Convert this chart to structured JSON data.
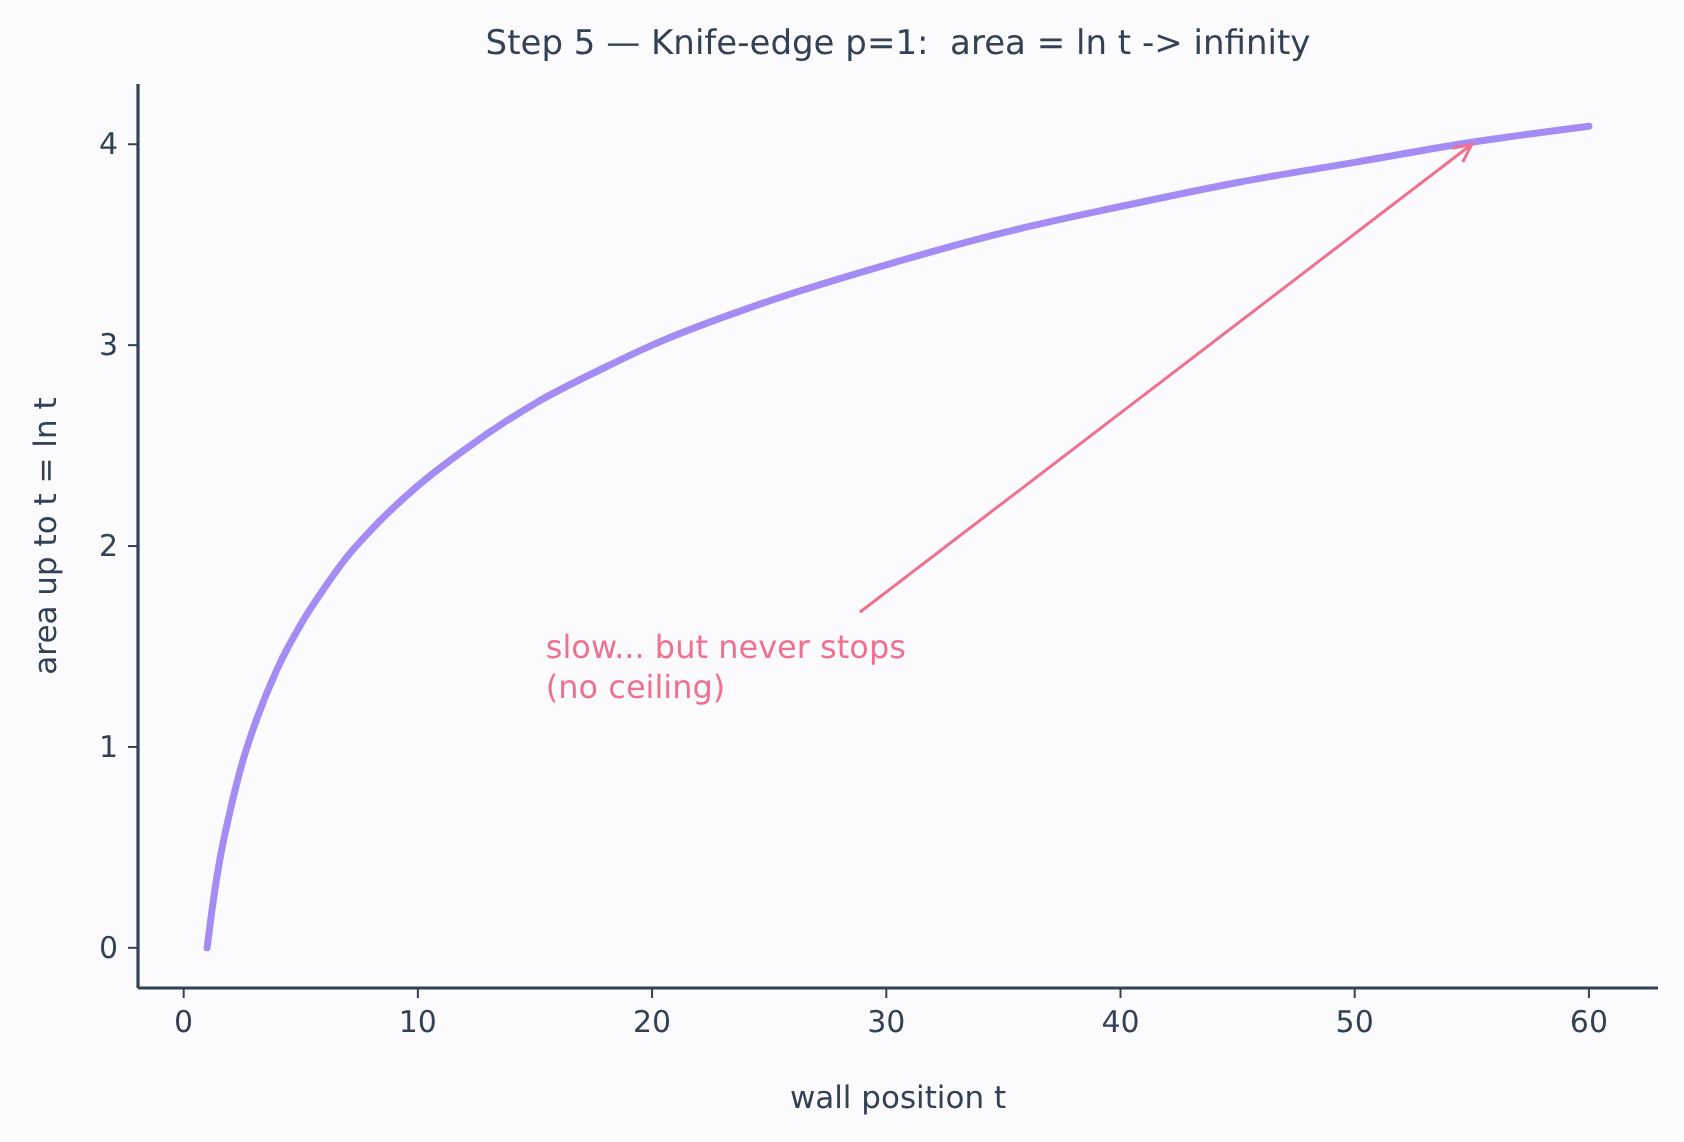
{
  "chart_data": {
    "type": "line",
    "title": "Step 5 — Knife-edge p=1:  area = ln t -> infinity",
    "xlabel": "wall position t",
    "ylabel": "area up to t  = ln t",
    "x": [
      1,
      1.2,
      1.5,
      2,
      2.5,
      3,
      4,
      5,
      6,
      7,
      8,
      10,
      12,
      15,
      18,
      20,
      25,
      30,
      35,
      40,
      45,
      50,
      55,
      60
    ],
    "series": [
      {
        "color": "#a48cf4",
        "values": [
          0,
          0.18,
          0.41,
          0.69,
          0.92,
          1.1,
          1.39,
          1.61,
          1.79,
          1.95,
          2.08,
          2.3,
          2.48,
          2.71,
          2.89,
          3.0,
          3.22,
          3.4,
          3.56,
          3.69,
          3.81,
          3.91,
          4.01,
          4.09
        ]
      }
    ],
    "xlim": [
      -1.95,
      62.95
    ],
    "ylim": [
      -0.2,
      4.3
    ],
    "xticks": [
      0,
      10,
      20,
      30,
      40,
      50,
      60
    ],
    "yticks": [
      0,
      1,
      2,
      3,
      4
    ],
    "annotations": [
      {
        "text": "slow... but never stops\n(no ceiling)",
        "x": 55,
        "y": 4.0
      }
    ],
    "grid": false,
    "marker": "none",
    "line_style": "solid"
  }
}
